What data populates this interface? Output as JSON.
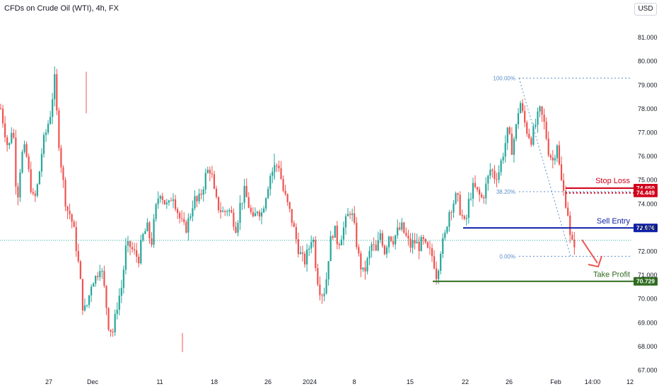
{
  "header": {
    "title": "CFDs on Crude Oil (WTI), 4h, FX",
    "currency": "USD"
  },
  "colors": {
    "up": "#26a69a",
    "down": "#ef5350",
    "stop": "#d0021b",
    "entry": "#0d1fa8",
    "profit": "#2e6b1f",
    "fib": "#5b8fc9",
    "axis_text": "#131722"
  },
  "chart_data": {
    "type": "candlestick",
    "symbol": "CFDs on Crude Oil (WTI)",
    "timeframe": "4h",
    "ylim": [
      67.0,
      82.0
    ],
    "y_ticks": [
      "81.000",
      "80.000",
      "79.000",
      "78.000",
      "77.000",
      "76.000",
      "75.000",
      "74.000",
      "73.000",
      "72.000",
      "71.000",
      "70.000",
      "69.000",
      "68.000",
      "67.000"
    ],
    "x_ticks": [
      "27",
      "Dec",
      "11",
      "18",
      "26",
      "2024",
      "8",
      "15",
      "22",
      "26",
      "Feb",
      "14:00",
      "12"
    ],
    "levels": [
      {
        "id": "stop_loss",
        "label": "Stop Loss",
        "value": 74.65
      },
      {
        "id": "sell_entry",
        "label": "Sell Entry",
        "value": 72.976
      },
      {
        "id": "take_profit",
        "label": "Take Profit",
        "value": 70.729
      }
    ],
    "price_tags": [
      {
        "id": "stop",
        "text": "74.650"
      },
      {
        "id": "stop2",
        "text": "74.449"
      },
      {
        "id": "entry",
        "text": "72.976"
      },
      {
        "id": "profit",
        "text": "70.729"
      }
    ],
    "extra_levels": [
      {
        "id": "current_price",
        "value": 74.449
      }
    ],
    "fibonacci": [
      {
        "label": "100.00%",
        "value": 79.28
      },
      {
        "label": "38.20%",
        "value": 74.5
      },
      {
        "label": "0.00%",
        "value": 71.78
      }
    ],
    "anchors": [
      [
        1,
        78.0
      ],
      [
        6,
        77.2
      ],
      [
        12,
        76.2
      ],
      [
        18,
        77.5
      ],
      [
        24,
        74.0
      ],
      [
        30,
        76.0
      ],
      [
        36,
        76.3
      ],
      [
        42,
        75.0
      ],
      [
        48,
        74.0
      ],
      [
        54,
        74.9
      ],
      [
        60,
        76.4
      ],
      [
        66,
        77.1
      ],
      [
        72,
        77.9
      ],
      [
        77,
        79.3
      ],
      [
        82,
        77.0
      ],
      [
        88,
        75.2
      ],
      [
        94,
        73.8
      ],
      [
        100,
        73.5
      ],
      [
        106,
        72.6
      ],
      [
        112,
        71.2
      ],
      [
        118,
        69.4
      ],
      [
        124,
        69.8
      ],
      [
        130,
        70.8
      ],
      [
        136,
        70.9
      ],
      [
        142,
        71.5
      ],
      [
        148,
        70.3
      ],
      [
        154,
        68.8
      ],
      [
        160,
        68.6
      ],
      [
        166,
        69.8
      ],
      [
        172,
        70.5
      ],
      [
        178,
        72.1
      ],
      [
        184,
        72.2
      ],
      [
        190,
        71.9
      ],
      [
        196,
        71.7
      ],
      [
        202,
        72.6
      ],
      [
        208,
        73.0
      ],
      [
        214,
        72.3
      ],
      [
        220,
        73.7
      ],
      [
        226,
        74.6
      ],
      [
        232,
        74.1
      ],
      [
        238,
        73.8
      ],
      [
        244,
        74.5
      ],
      [
        250,
        73.8
      ],
      [
        256,
        73.2
      ],
      [
        262,
        72.9
      ],
      [
        268,
        73.4
      ],
      [
        274,
        74.2
      ],
      [
        280,
        74.0
      ],
      [
        286,
        74.6
      ],
      [
        292,
        75.3
      ],
      [
        298,
        75.5
      ],
      [
        304,
        74.2
      ],
      [
        310,
        73.8
      ],
      [
        316,
        73.6
      ],
      [
        322,
        73.8
      ],
      [
        328,
        73.5
      ],
      [
        334,
        73.0
      ],
      [
        340,
        74.0
      ],
      [
        346,
        74.5
      ],
      [
        352,
        73.9
      ],
      [
        358,
        73.2
      ],
      [
        364,
        73.8
      ],
      [
        370,
        73.6
      ],
      [
        376,
        74.4
      ],
      [
        382,
        75.2
      ],
      [
        388,
        75.5
      ],
      [
        394,
        75.7
      ],
      [
        400,
        74.6
      ],
      [
        406,
        74.0
      ],
      [
        412,
        73.4
      ],
      [
        418,
        72.6
      ],
      [
        424,
        71.9
      ],
      [
        430,
        71.5
      ],
      [
        436,
        72.0
      ],
      [
        442,
        72.8
      ],
      [
        448,
        71.0
      ],
      [
        454,
        70.2
      ],
      [
        460,
        70.4
      ],
      [
        466,
        72.2
      ],
      [
        472,
        73.0
      ],
      [
        478,
        72.3
      ],
      [
        484,
        72.8
      ],
      [
        490,
        73.3
      ],
      [
        496,
        73.8
      ],
      [
        502,
        72.8
      ],
      [
        508,
        71.6
      ],
      [
        514,
        71.0
      ],
      [
        520,
        71.6
      ],
      [
        526,
        72.3
      ],
      [
        532,
        71.9
      ],
      [
        538,
        72.8
      ],
      [
        544,
        72.0
      ],
      [
        550,
        72.7
      ],
      [
        556,
        72.5
      ],
      [
        562,
        72.8
      ],
      [
        568,
        73.0
      ],
      [
        574,
        72.6
      ],
      [
        580,
        72.2
      ],
      [
        586,
        72.4
      ],
      [
        592,
        72.2
      ],
      [
        598,
        72.4
      ],
      [
        604,
        72.0
      ],
      [
        610,
        71.9
      ],
      [
        616,
        71.3
      ],
      [
        618,
        70.8
      ],
      [
        622,
        72.0
      ],
      [
        626,
        72.3
      ],
      [
        630,
        72.7
      ],
      [
        634,
        73.6
      ],
      [
        640,
        74.0
      ],
      [
        646,
        74.3
      ],
      [
        652,
        73.6
      ],
      [
        658,
        73.0
      ],
      [
        664,
        74.3
      ],
      [
        670,
        74.7
      ],
      [
        676,
        74.4
      ],
      [
        682,
        74.2
      ],
      [
        688,
        74.8
      ],
      [
        694,
        75.5
      ],
      [
        700,
        75.1
      ],
      [
        706,
        75.4
      ],
      [
        712,
        76.2
      ],
      [
        718,
        77.0
      ],
      [
        724,
        76.3
      ],
      [
        730,
        77.2
      ],
      [
        735,
        78.4
      ],
      [
        740,
        77.6
      ],
      [
        746,
        77.0
      ],
      [
        752,
        76.7
      ],
      [
        758,
        77.4
      ],
      [
        764,
        77.9
      ],
      [
        770,
        77.3
      ],
      [
        776,
        76.2
      ],
      [
        782,
        75.8
      ],
      [
        788,
        76.6
      ],
      [
        792,
        75.2
      ],
      [
        796,
        74.6
      ],
      [
        800,
        74.1
      ],
      [
        804,
        73.5
      ],
      [
        807,
        72.2
      ],
      [
        810,
        72.3
      ],
      [
        813,
        72.4
      ]
    ]
  },
  "annotations": {
    "stop_loss": "Stop Loss",
    "sell_entry": "Sell Entry",
    "take_profit": "Take Profit"
  }
}
